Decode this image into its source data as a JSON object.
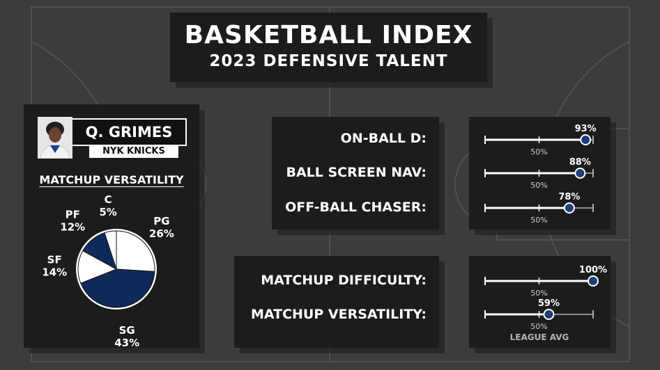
{
  "title": "BASKETBALL INDEX",
  "subtitle": "2023 DEFENSIVE TALENT",
  "player": {
    "name": "Q. GRIMES",
    "team": "NYK KNICKS"
  },
  "matchup_title": "MATCHUP VERSATILITY",
  "league_avg_label": "LEAGUE AVG",
  "colors": {
    "navy": "#0e2a5a",
    "white": "#ffffff",
    "panel": "#1c1c1c"
  },
  "chart_data": [
    {
      "type": "pie",
      "title": "MATCHUP VERSATILITY",
      "slices": [
        {
          "label": "PG",
          "value": 26,
          "text": "26%",
          "color": "#ffffff"
        },
        {
          "label": "SG",
          "value": 43,
          "text": "43%",
          "color": "#0e2a5a"
        },
        {
          "label": "SF",
          "value": 14,
          "text": "14%",
          "color": "#ffffff"
        },
        {
          "label": "PF",
          "value": 12,
          "text": "12%",
          "color": "#0e2a5a"
        },
        {
          "label": "C",
          "value": 5,
          "text": "5%",
          "color": "#ffffff"
        }
      ]
    },
    {
      "type": "dot-plot",
      "xlim": [
        0,
        100
      ],
      "reference": {
        "value": 50,
        "label": "50%"
      },
      "groups": [
        {
          "rows": [
            {
              "label": "ON-BALL D:",
              "value": 93,
              "text": "93%"
            },
            {
              "label": "BALL SCREEN NAV:",
              "value": 88,
              "text": "88%"
            },
            {
              "label": "OFF-BALL CHASER:",
              "value": 78,
              "text": "78%"
            }
          ]
        },
        {
          "rows": [
            {
              "label": "MATCHUP DIFFICULTY:",
              "value": 100,
              "text": "100%"
            },
            {
              "label": "MATCHUP VERSATILITY:",
              "value": 59,
              "text": "59%"
            }
          ]
        }
      ]
    }
  ]
}
